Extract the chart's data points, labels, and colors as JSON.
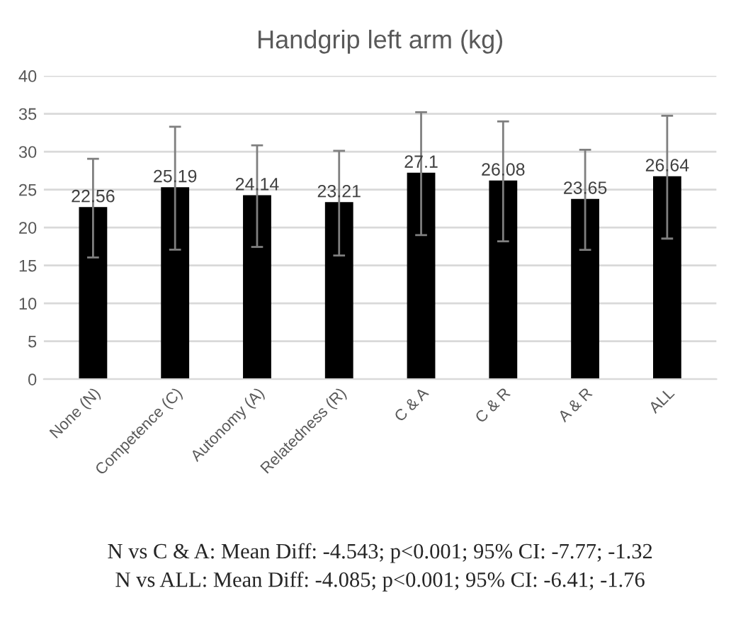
{
  "chart_data": {
    "type": "bar",
    "title": "Handgrip left arm (kg)",
    "categories": [
      "None (N)",
      "Competence (C)",
      "Autonomy (A)",
      "Relatedness (R)",
      "C & A",
      "C & R",
      "A & R",
      "ALL"
    ],
    "values": [
      22.56,
      25.19,
      24.14,
      23.21,
      27.1,
      26.08,
      23.65,
      26.64
    ],
    "errors": [
      6.5,
      8.1,
      6.7,
      6.9,
      8.1,
      7.9,
      6.6,
      8.1
    ],
    "color": "#000000",
    "data_labels": true,
    "ylim": [
      0,
      40
    ],
    "yticks": [
      0,
      5,
      10,
      15,
      20,
      25,
      30,
      35,
      40
    ],
    "grid": "y",
    "annotations": [
      "N vs C & A: Mean Diff: -4.543; p<0.001; 95% CI: -7.77; -1.32",
      "N vs ALL: Mean Diff: -4.085; p<0.001; 95% CI: -6.41; -1.76"
    ]
  }
}
